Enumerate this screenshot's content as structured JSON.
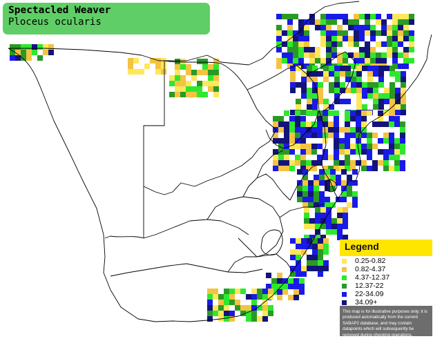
{
  "title": {
    "common_name": "Spectacled Weaver",
    "scientific_name": "Ploceus ocularis"
  },
  "legend": {
    "title": "Legend",
    "items": [
      {
        "label": "0.25-0.82",
        "color": "#ffe75a"
      },
      {
        "label": "0.82-4.37",
        "color": "#f3c341"
      },
      {
        "label": "4.37-12.37",
        "color": "#2ee82e"
      },
      {
        "label": "12.37-22",
        "color": "#2a9a25"
      },
      {
        "label": "22-34.09",
        "color": "#1a1ae6"
      },
      {
        "label": "34.09+",
        "color": "#13137a"
      }
    ],
    "note": "This map is for illustrative purposes only; it is produced automatically from the current SABAP2 database, and may contain datapoints which will subsequently be removed during checking operations."
  },
  "map": {
    "background_color": "#ffffff",
    "border_color": "#000000",
    "layers": [
      "country-borders",
      "province-borders",
      "record-grid-cells"
    ]
  }
}
